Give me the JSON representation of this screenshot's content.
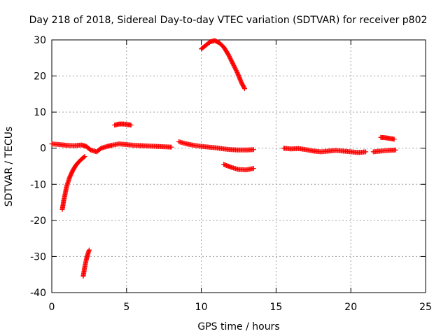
{
  "chart_data": {
    "type": "scatter",
    "title": "Day 218 of 2018, Sidereal Day-to-day VTEC variation (SDTVAR) for receiver p802",
    "xlabel": "GPS time / hours",
    "ylabel": "SDTVAR / TECUs",
    "xlim": [
      0,
      25
    ],
    "ylim": [
      -40,
      30
    ],
    "x_ticks": [
      0,
      5,
      10,
      15,
      20,
      25
    ],
    "y_ticks": [
      -40,
      -30,
      -20,
      -10,
      0,
      10,
      20,
      30
    ],
    "grid": true,
    "marker": "+",
    "color": "#ff0000",
    "series": [
      {
        "name": "main-trace",
        "points": [
          [
            0.0,
            1.2
          ],
          [
            0.5,
            1.0
          ],
          [
            1.0,
            0.8
          ],
          [
            1.5,
            0.7
          ],
          [
            2.0,
            0.9
          ],
          [
            2.3,
            0.5
          ],
          [
            2.6,
            -0.5
          ],
          [
            3.0,
            -1.0
          ],
          [
            3.3,
            0.0
          ],
          [
            3.7,
            0.5
          ],
          [
            4.0,
            0.8
          ],
          [
            4.5,
            1.2
          ],
          [
            5.0,
            1.0
          ],
          [
            5.5,
            0.8
          ],
          [
            6.0,
            0.7
          ],
          [
            6.5,
            0.6
          ],
          [
            7.0,
            0.5
          ],
          [
            7.5,
            0.4
          ],
          [
            8.0,
            0.3
          ]
        ]
      },
      {
        "name": "arc-8-13",
        "points": [
          [
            8.5,
            1.8
          ],
          [
            9.0,
            1.2
          ],
          [
            9.5,
            0.8
          ],
          [
            10.0,
            0.5
          ],
          [
            10.5,
            0.3
          ],
          [
            11.0,
            0.1
          ],
          [
            11.5,
            -0.2
          ],
          [
            12.0,
            -0.4
          ],
          [
            12.5,
            -0.5
          ],
          [
            13.0,
            -0.5
          ],
          [
            13.5,
            -0.4
          ]
        ]
      },
      {
        "name": "recovery-rise",
        "points": [
          [
            0.7,
            -17.0
          ],
          [
            0.8,
            -14.5
          ],
          [
            0.9,
            -12.5
          ],
          [
            1.0,
            -10.5
          ],
          [
            1.2,
            -8.0
          ],
          [
            1.4,
            -6.2
          ],
          [
            1.6,
            -4.8
          ],
          [
            1.8,
            -3.8
          ],
          [
            2.0,
            -3.0
          ],
          [
            2.2,
            -2.3
          ]
        ]
      },
      {
        "name": "deep-dip",
        "points": [
          [
            2.1,
            -35.5
          ],
          [
            2.2,
            -33.0
          ],
          [
            2.3,
            -31.0
          ],
          [
            2.4,
            -29.5
          ],
          [
            2.5,
            -28.2
          ]
        ]
      },
      {
        "name": "arc-4-5",
        "points": [
          [
            4.2,
            6.4
          ],
          [
            4.5,
            6.7
          ],
          [
            4.8,
            6.7
          ],
          [
            5.0,
            6.6
          ],
          [
            5.3,
            6.4
          ]
        ]
      },
      {
        "name": "peak-arc",
        "points": [
          [
            10.0,
            27.5
          ],
          [
            10.3,
            28.5
          ],
          [
            10.6,
            29.5
          ],
          [
            10.9,
            29.8
          ],
          [
            11.2,
            29.2
          ],
          [
            11.5,
            28.0
          ],
          [
            11.8,
            26.0
          ],
          [
            12.1,
            23.5
          ],
          [
            12.4,
            21.0
          ],
          [
            12.7,
            18.0
          ],
          [
            12.9,
            16.5
          ]
        ]
      },
      {
        "name": "arc-11-13",
        "points": [
          [
            11.5,
            -4.5
          ],
          [
            12.0,
            -5.3
          ],
          [
            12.5,
            -5.9
          ],
          [
            13.0,
            -6.0
          ],
          [
            13.5,
            -5.6
          ]
        ]
      },
      {
        "name": "arc-15-21",
        "points": [
          [
            15.5,
            0.0
          ],
          [
            16.0,
            -0.2
          ],
          [
            16.5,
            -0.1
          ],
          [
            17.0,
            -0.4
          ],
          [
            17.5,
            -0.8
          ],
          [
            18.0,
            -1.0
          ],
          [
            18.5,
            -0.8
          ],
          [
            19.0,
            -0.6
          ],
          [
            19.5,
            -0.8
          ],
          [
            20.0,
            -1.0
          ],
          [
            20.5,
            -1.2
          ],
          [
            21.0,
            -1.0
          ]
        ]
      },
      {
        "name": "arc-21-23",
        "points": [
          [
            21.5,
            -1.0
          ],
          [
            22.0,
            -0.8
          ],
          [
            22.5,
            -0.6
          ],
          [
            23.0,
            -0.5
          ]
        ]
      },
      {
        "name": "arc-22-23",
        "points": [
          [
            22.0,
            3.0
          ],
          [
            22.3,
            2.9
          ],
          [
            22.6,
            2.7
          ],
          [
            22.9,
            2.5
          ]
        ]
      }
    ]
  }
}
